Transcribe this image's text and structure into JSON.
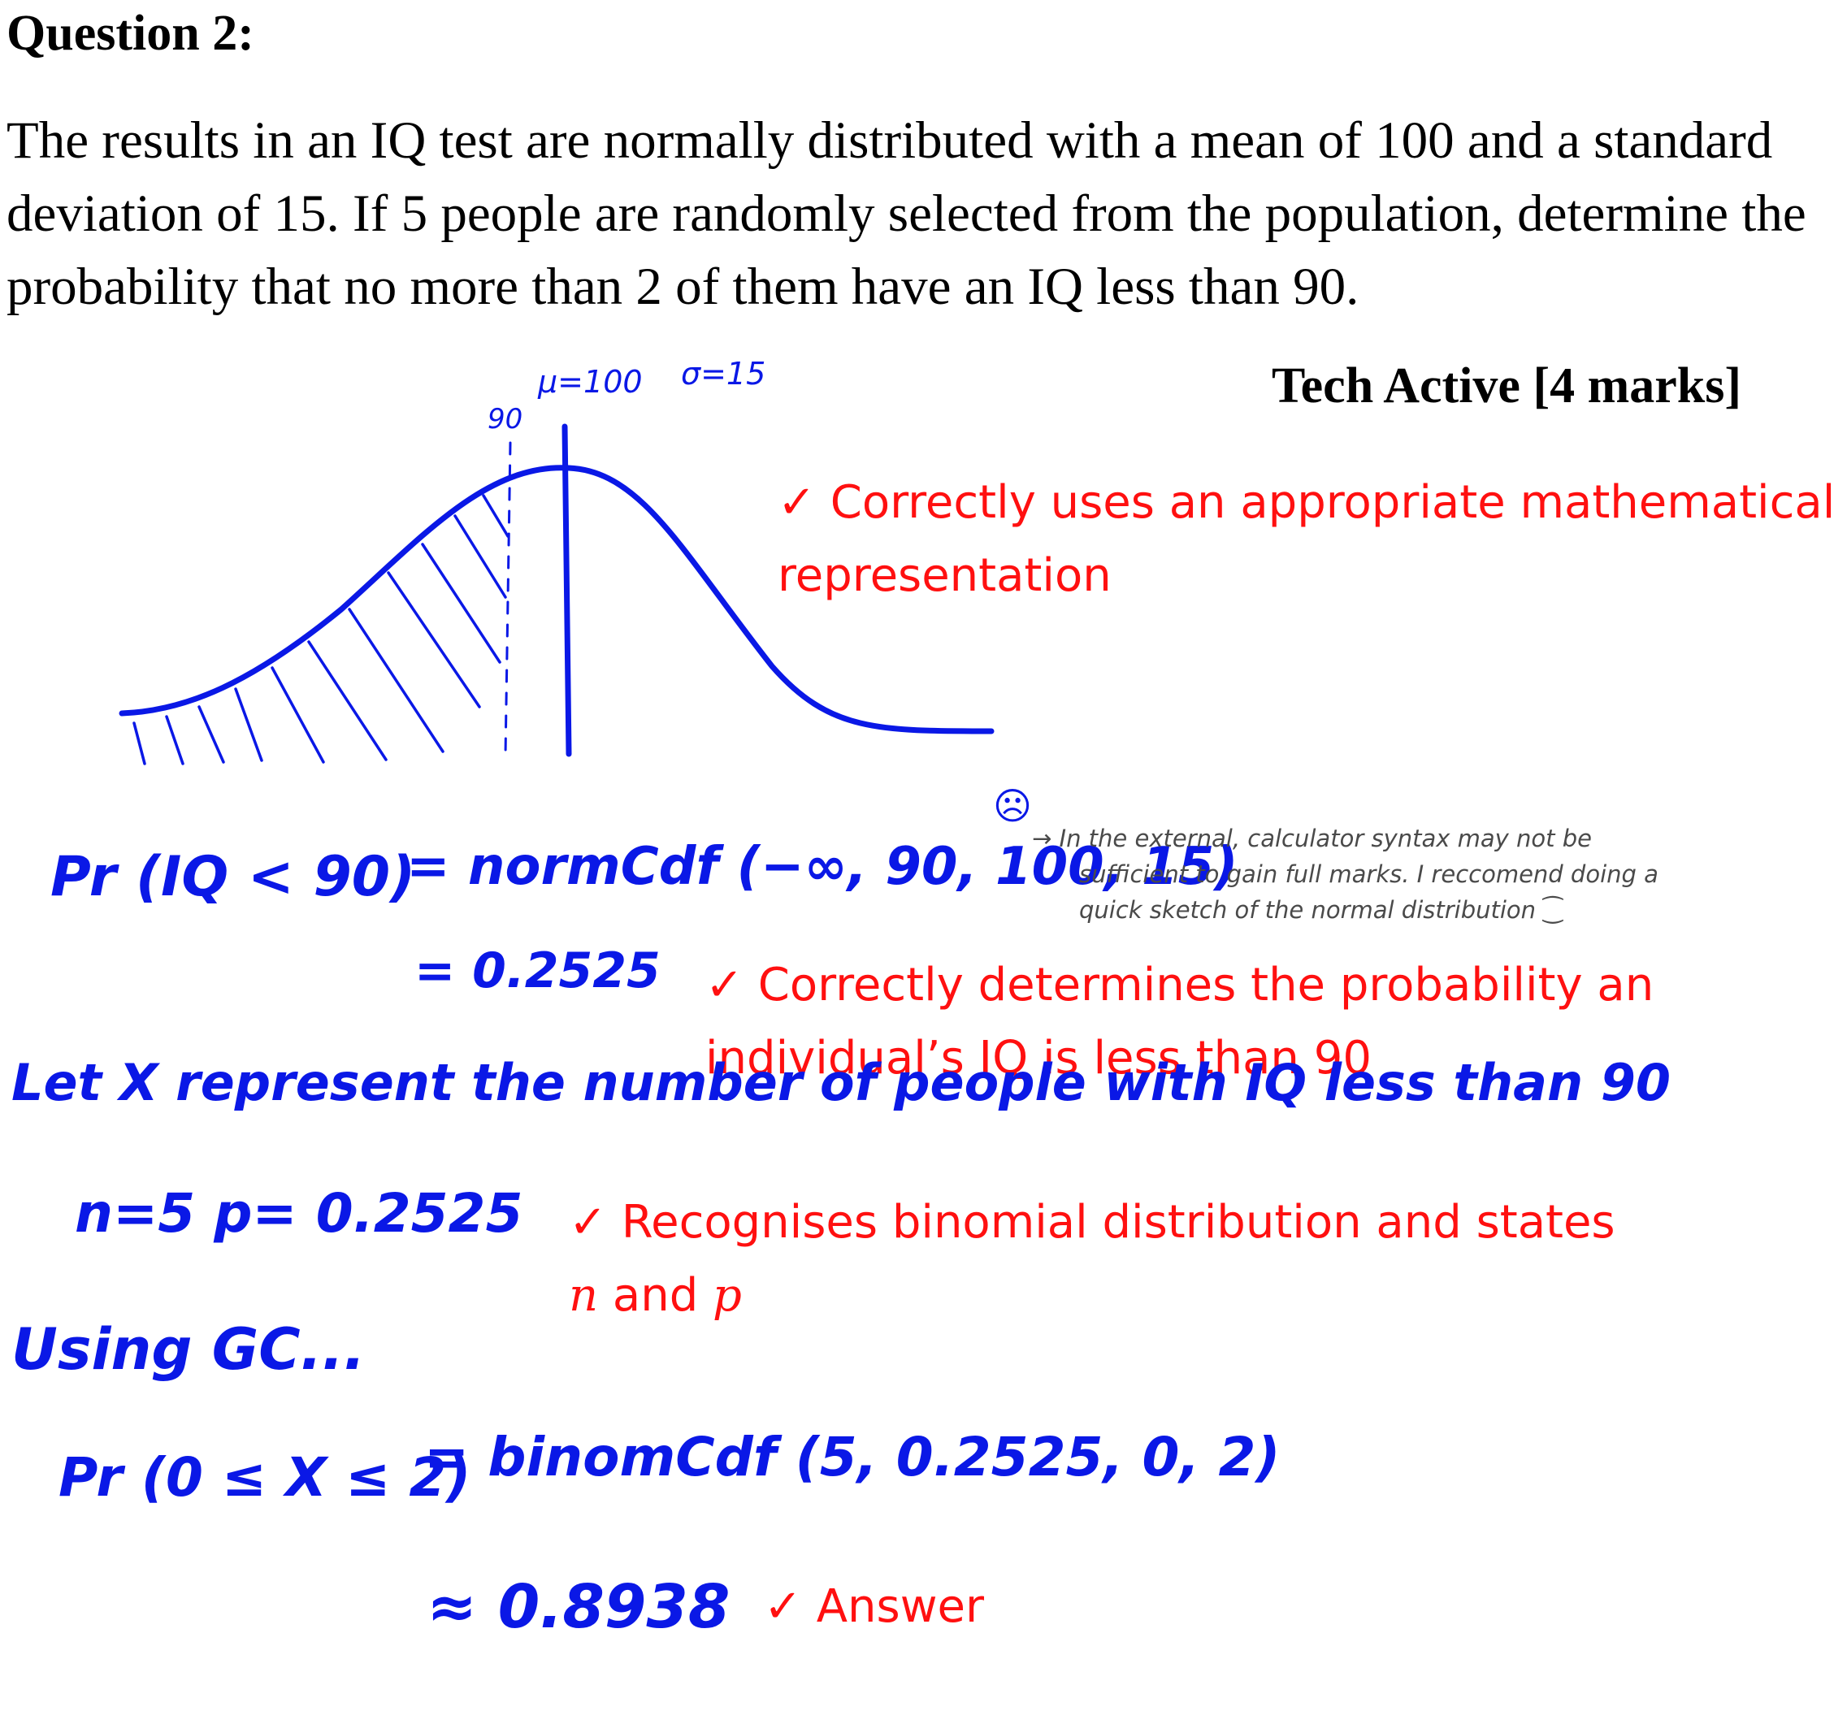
{
  "question": {
    "title": "Question 2:",
    "text": "The results in an IQ test are normally distributed with a mean of 100 and a standard deviation of 15. If 5 people are randomly selected from the population, determine the probability that no more than 2 of them have an IQ less than 90.",
    "marks": "Tech Active [4 marks]"
  },
  "sketch": {
    "mu_label": "μ=100",
    "sigma_label": "σ=15",
    "ninety_label": "90",
    "line_color": "#0a18e6"
  },
  "working": {
    "pr_iq": "Pr (IQ < 90)",
    "normcdf": "= normCdf (−∞, 90, 100, 15)",
    "sad_face": "☹",
    "result1": "= 0.2525",
    "let_x": "Let X represent the number of people with IQ less than 90",
    "n_p": "n=5   p= 0.2525",
    "using_gc": "Using GC...",
    "pr_x": "Pr (0 ≤ X ≤ 2)",
    "binomcdf": "= binomCdf (5, 0.2525, 0, 2)",
    "final": "≈ 0.8938"
  },
  "side_note": {
    "arrow": "→",
    "line1": "In the external, calculator syntax may not be",
    "line2": "sufficient to gain full marks. I reccomend doing a",
    "line3": "quick sketch of the normal distribution ⁐"
  },
  "criteria": {
    "check": "✓",
    "c1_line1": "Correctly uses an appropriate mathematical",
    "c1_line2": "representation",
    "c2_line1": "Correctly determines the probability an",
    "c2_line2": "individual’s IQ is less than 90",
    "c3_line1": "Recognises binomial distribution and states",
    "c3_n": "n",
    "c3_and": " and ",
    "c3_p": "p",
    "c4": "Answer",
    "color": "#ff1010"
  }
}
